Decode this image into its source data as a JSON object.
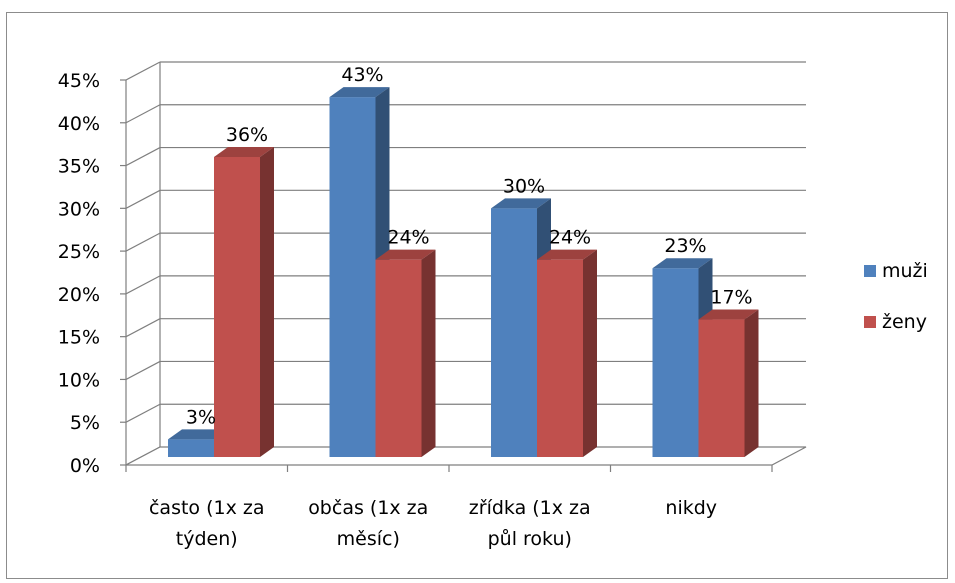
{
  "chart_data": {
    "type": "bar",
    "categories": [
      [
        "často (1x za",
        "týden)"
      ],
      [
        "občas (1x za",
        "měsíc)"
      ],
      [
        "zřídka (1x za",
        "půl roku)"
      ],
      [
        "nikdy"
      ]
    ],
    "series": [
      {
        "name": "muži",
        "values": [
          3,
          43,
          30,
          23
        ],
        "labels": [
          "3%",
          "43%",
          "30%",
          "23%"
        ],
        "color": "#4F81BD"
      },
      {
        "name": "ženy",
        "values": [
          36,
          24,
          24,
          17
        ],
        "labels": [
          "36%",
          "24%",
          "24%",
          "17%"
        ],
        "color": "#C0504D"
      }
    ],
    "y_ticks": [
      "0%",
      "5%",
      "10%",
      "15%",
      "20%",
      "25%",
      "30%",
      "35%",
      "40%",
      "45%"
    ],
    "ylim": [
      0,
      45
    ],
    "ystep": 5,
    "grid": true,
    "legend_position": "right",
    "style_3d": true
  }
}
